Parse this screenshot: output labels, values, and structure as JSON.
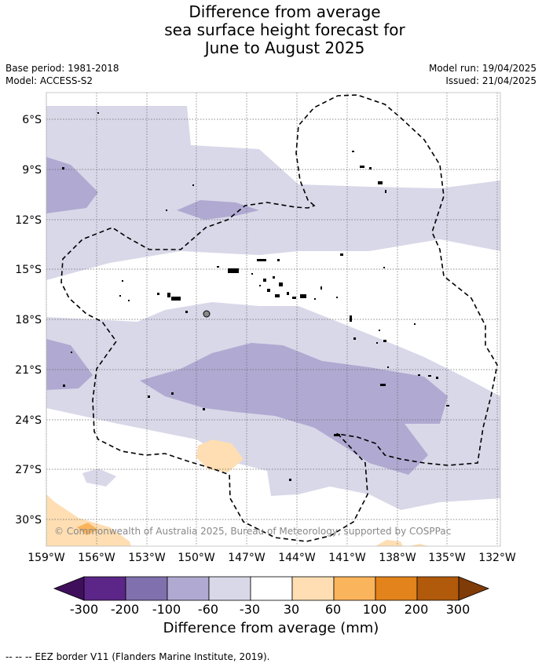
{
  "title": {
    "line1": "Difference from average",
    "line2": "sea surface height forecast for",
    "line3": "June to August 2025"
  },
  "meta": {
    "base_period": "Base period: 1981-2018",
    "model": "Model: ACCESS-S2",
    "model_run": "Model run: 19/04/2025",
    "issued": "Issued: 21/04/2025"
  },
  "map": {
    "lat_labels": [
      "6°S",
      "9°S",
      "12°S",
      "15°S",
      "18°S",
      "21°S",
      "24°S",
      "27°S",
      "30°S"
    ],
    "lon_labels": [
      "159°W",
      "156°W",
      "153°W",
      "150°W",
      "147°W",
      "144°W",
      "141°W",
      "138°W",
      "135°W",
      "132°W"
    ],
    "copyright": "© Commonwealth of Australia 2025, Bureau of Meteorology, supported by COSPPac"
  },
  "colorbar": {
    "labels": [
      "-300",
      "-200",
      "-100",
      "-60",
      "-30",
      "30",
      "60",
      "100",
      "200",
      "300"
    ],
    "colors": [
      "#3f0f5c",
      "#5c2688",
      "#8170ae",
      "#b0a9d1",
      "#d8d8e9",
      "#ffffff",
      "#fedeb2",
      "#fab45b",
      "#e2831c",
      "#b15a0b",
      "#7f3b08"
    ],
    "title": "Difference from average (mm)"
  },
  "footer": {
    "legend": "--  --  -- EEZ border V11 (Flanders Marine Institute, 2019)."
  }
}
